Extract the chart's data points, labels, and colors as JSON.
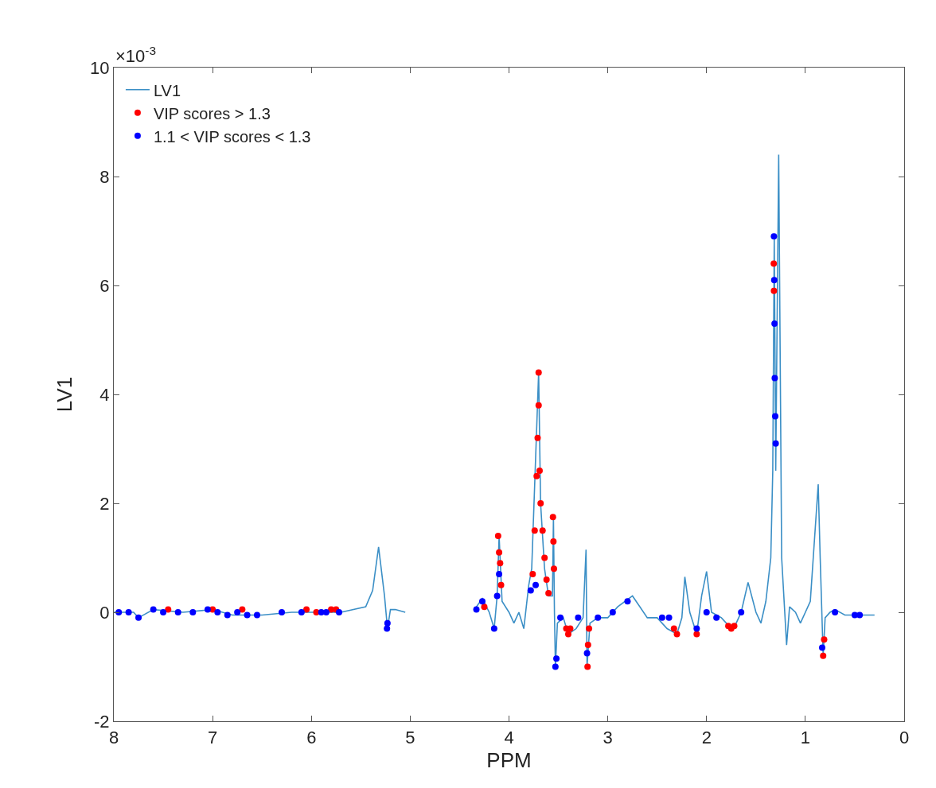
{
  "chart_data": {
    "type": "line",
    "xlabel": "PPM",
    "ylabel": "LV1",
    "annotations": [
      "×10$^{-3}$"
    ],
    "xlim": [
      8,
      0
    ],
    "xticks": [
      8,
      7,
      6,
      5,
      4,
      3,
      2,
      1,
      0
    ],
    "ylim": [
      -2,
      10
    ],
    "yticks": [
      -2,
      0,
      2,
      4,
      6,
      8,
      10
    ],
    "legend": "top left",
    "series": [
      {
        "name": "LV1",
        "color": "#3b8fc6",
        "marker": "none",
        "line_style": "solid",
        "x": [
          8.0,
          7.8,
          7.75,
          7.6,
          7.3,
          7.0,
          6.8,
          6.5,
          6.2,
          5.7,
          5.45,
          5.38,
          5.32,
          5.26,
          5.23,
          5.2,
          5.15,
          5.05,
          null,
          4.35,
          4.27,
          4.2,
          4.15,
          4.12,
          4.1,
          4.07,
          4.0,
          3.95,
          3.9,
          3.85,
          3.8,
          3.77,
          3.7,
          3.68,
          3.64,
          3.6,
          3.56,
          3.55,
          3.54,
          3.53,
          3.51,
          3.45,
          3.4,
          3.32,
          3.25,
          3.22,
          3.21,
          3.18,
          3.1,
          3.0,
          2.9,
          2.75,
          2.6,
          2.5,
          2.4,
          2.3,
          2.25,
          2.22,
          2.17,
          2.1,
          2.05,
          2.0,
          1.95,
          1.85,
          1.75,
          1.7,
          1.65,
          1.58,
          1.5,
          1.45,
          1.4,
          1.35,
          1.33,
          1.315,
          1.3,
          1.27,
          1.24,
          1.19,
          1.16,
          1.1,
          1.05,
          1.0,
          0.95,
          0.87,
          0.85,
          0.82,
          0.8,
          0.75,
          0.7,
          0.6,
          0.3
        ],
        "values": [
          0.0,
          0.0,
          -0.1,
          0.05,
          0.0,
          0.05,
          -0.05,
          -0.05,
          0.0,
          0.0,
          0.1,
          0.4,
          1.2,
          0.3,
          -0.3,
          0.05,
          0.05,
          0.0,
          null,
          0.05,
          0.25,
          0.0,
          -0.3,
          0.3,
          1.4,
          0.2,
          0.0,
          -0.2,
          0.0,
          -0.3,
          0.5,
          0.8,
          4.4,
          2.0,
          0.8,
          0.3,
          0.3,
          1.75,
          0.0,
          -1.0,
          -0.2,
          -0.1,
          -0.4,
          -0.3,
          -0.1,
          1.15,
          -1.0,
          -0.2,
          -0.1,
          -0.1,
          0.1,
          0.3,
          -0.1,
          -0.1,
          -0.3,
          -0.4,
          -0.1,
          0.65,
          0.0,
          -0.4,
          0.3,
          0.75,
          0.0,
          -0.1,
          -0.3,
          -0.2,
          0.0,
          0.55,
          0.0,
          -0.2,
          0.2,
          1.0,
          2.6,
          6.9,
          2.6,
          8.4,
          1.0,
          -0.6,
          0.1,
          0.0,
          -0.2,
          0.0,
          0.2,
          2.35,
          1.0,
          -0.8,
          -0.1,
          0.0,
          0.05,
          -0.05,
          -0.05
        ]
      },
      {
        "name": "VIP scores > 1.3",
        "type": "scatter",
        "color": "#ff0000",
        "marker": "circle",
        "x": [
          7.45,
          7.0,
          6.7,
          6.05,
          5.95,
          5.8,
          5.75,
          4.25,
          4.11,
          4.1,
          4.09,
          4.08,
          3.76,
          3.74,
          3.72,
          3.71,
          3.7,
          3.7,
          3.69,
          3.68,
          3.66,
          3.64,
          3.62,
          3.6,
          3.555,
          3.55,
          3.545,
          3.42,
          3.4,
          3.38,
          3.205,
          3.2,
          3.19,
          2.33,
          2.3,
          2.1,
          1.78,
          1.75,
          1.72,
          1.32,
          1.318,
          0.82,
          0.81
        ],
        "values": [
          0.05,
          0.05,
          0.05,
          0.05,
          0.0,
          0.05,
          0.05,
          0.1,
          1.4,
          1.1,
          0.9,
          0.5,
          0.7,
          1.5,
          2.5,
          3.2,
          4.4,
          3.8,
          2.6,
          2.0,
          1.5,
          1.0,
          0.6,
          0.35,
          1.75,
          1.3,
          0.8,
          -0.3,
          -0.4,
          -0.3,
          -1.0,
          -0.6,
          -0.3,
          -0.3,
          -0.4,
          -0.4,
          -0.25,
          -0.3,
          -0.25,
          6.4,
          5.9,
          -0.8,
          -0.5
        ]
      },
      {
        "name": "1.1 < VIP scores < 1.3",
        "type": "scatter",
        "color": "#0000ff",
        "marker": "circle",
        "x": [
          7.95,
          7.85,
          7.75,
          7.6,
          7.5,
          7.35,
          7.2,
          7.05,
          6.95,
          6.85,
          6.75,
          6.65,
          6.55,
          6.3,
          6.1,
          5.9,
          5.85,
          5.72,
          5.235,
          5.23,
          4.33,
          4.27,
          4.15,
          4.12,
          4.1,
          3.78,
          3.73,
          3.53,
          3.52,
          3.48,
          3.3,
          3.21,
          3.1,
          2.95,
          2.8,
          2.45,
          2.38,
          2.1,
          2.0,
          1.9,
          1.65,
          1.318,
          1.315,
          1.312,
          1.31,
          1.305,
          1.3,
          0.83,
          0.7,
          0.5,
          0.45
        ],
        "values": [
          0.0,
          0.0,
          -0.1,
          0.05,
          0.0,
          0.0,
          0.0,
          0.05,
          0.0,
          -0.05,
          0.0,
          -0.05,
          -0.05,
          0.0,
          0.0,
          0.0,
          0.0,
          0.0,
          -0.3,
          -0.2,
          0.05,
          0.2,
          -0.3,
          0.3,
          0.7,
          0.4,
          0.5,
          -1.0,
          -0.85,
          -0.1,
          -0.1,
          -0.75,
          -0.1,
          0.0,
          0.2,
          -0.1,
          -0.1,
          -0.3,
          0.0,
          -0.1,
          0.0,
          6.9,
          6.1,
          5.3,
          4.3,
          3.6,
          3.1,
          -0.65,
          0.0,
          -0.05,
          -0.05
        ]
      }
    ]
  }
}
